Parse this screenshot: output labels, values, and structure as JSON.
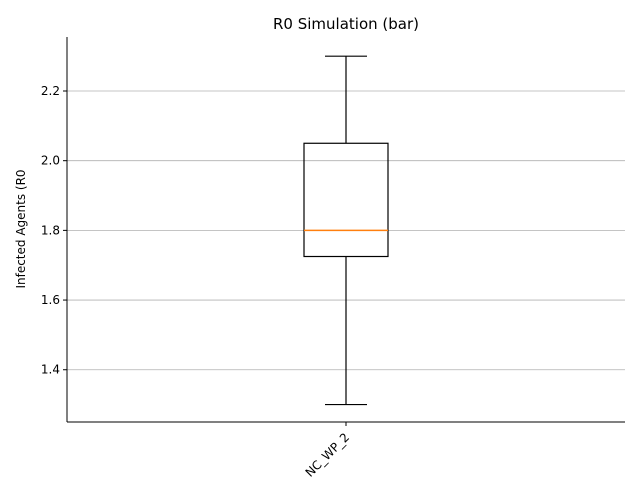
{
  "chart_data": {
    "type": "box",
    "title": "R0 Simulation (bar)",
    "xlabel": "",
    "ylabel": "Infected Agents (R0",
    "categories": [
      "NC_WP_2"
    ],
    "boxes": [
      {
        "category": "NC_WP_2",
        "min": 1.3,
        "q1": 1.725,
        "median": 1.8,
        "q3": 2.05,
        "max": 2.3
      }
    ],
    "ylim": [
      1.25,
      2.355
    ],
    "yticks": [
      1.4,
      1.6,
      1.8,
      2.0,
      2.2
    ],
    "ytick_labels": [
      "1.4",
      "1.6",
      "1.8",
      "2.0",
      "2.2"
    ],
    "grid": "y",
    "colors": {
      "median": "#ff7f0e",
      "box": "#000000",
      "grid": "#b0b0b0"
    }
  }
}
